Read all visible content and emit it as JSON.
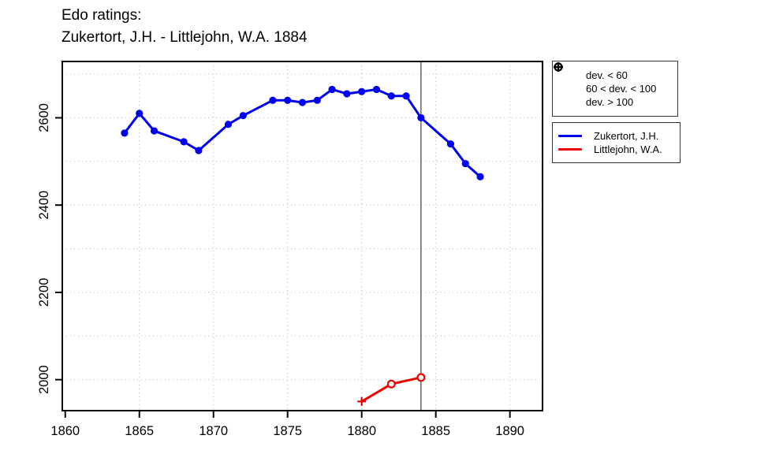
{
  "title": {
    "line1": "Edo ratings:",
    "line2": "Zukertort, J.H. - Littlejohn, W.A. 1884"
  },
  "colors": {
    "zukertort_blue": "#0000ee",
    "littlejohn_red": "#ee0000",
    "grid_gray": "#b4b4b4",
    "vline_gray": "#3f3f3f",
    "axis_black": "#000000"
  },
  "chart_data": {
    "type": "line",
    "title": "Edo ratings: Zukertort, J.H. - Littlejohn, W.A. 1884",
    "xlabel": "",
    "ylabel": "",
    "xlim": [
      1859.8,
      1892.2
    ],
    "ylim": [
      1929,
      2729
    ],
    "x_ticks": [
      1860,
      1865,
      1870,
      1875,
      1880,
      1885,
      1890
    ],
    "y_ticks": [
      2000,
      2200,
      2400,
      2600
    ],
    "x_grid": [
      1865,
      1870,
      1875,
      1880,
      1885,
      1890
    ],
    "y_grid": [
      2000,
      2100,
      2200,
      2300,
      2400,
      2500,
      2600,
      2700
    ],
    "grid_style": "dotted",
    "vline_year": 1884,
    "marker_legend": [
      {
        "symbol": "filled-circle",
        "label": "dev. < 60"
      },
      {
        "symbol": "open-circle",
        "label": "60 < dev. < 100"
      },
      {
        "symbol": "plus",
        "label": "dev. > 100"
      }
    ],
    "series": [
      {
        "name": "Zukertort, J.H.",
        "color": "#0000ee",
        "points": [
          {
            "x": 1864,
            "y": 2565,
            "marker": "filled-circle"
          },
          {
            "x": 1865,
            "y": 2610,
            "marker": "filled-circle"
          },
          {
            "x": 1866,
            "y": 2570,
            "marker": "filled-circle"
          },
          {
            "x": 1868,
            "y": 2545,
            "marker": "filled-circle"
          },
          {
            "x": 1869,
            "y": 2525,
            "marker": "filled-circle"
          },
          {
            "x": 1871,
            "y": 2585,
            "marker": "filled-circle"
          },
          {
            "x": 1872,
            "y": 2605,
            "marker": "filled-circle"
          },
          {
            "x": 1874,
            "y": 2640,
            "marker": "filled-circle"
          },
          {
            "x": 1875,
            "y": 2640,
            "marker": "filled-circle"
          },
          {
            "x": 1876,
            "y": 2635,
            "marker": "filled-circle"
          },
          {
            "x": 1877,
            "y": 2640,
            "marker": "filled-circle"
          },
          {
            "x": 1878,
            "y": 2665,
            "marker": "filled-circle"
          },
          {
            "x": 1879,
            "y": 2655,
            "marker": "filled-circle"
          },
          {
            "x": 1880,
            "y": 2660,
            "marker": "filled-circle"
          },
          {
            "x": 1881,
            "y": 2665,
            "marker": "filled-circle"
          },
          {
            "x": 1882,
            "y": 2650,
            "marker": "filled-circle"
          },
          {
            "x": 1883,
            "y": 2650,
            "marker": "filled-circle"
          },
          {
            "x": 1884,
            "y": 2600,
            "marker": "filled-circle"
          },
          {
            "x": 1886,
            "y": 2540,
            "marker": "filled-circle"
          },
          {
            "x": 1887,
            "y": 2495,
            "marker": "filled-circle"
          },
          {
            "x": 1888,
            "y": 2465,
            "marker": "filled-circle"
          }
        ]
      },
      {
        "name": "Littlejohn, W.A.",
        "color": "#ee0000",
        "points": [
          {
            "x": 1880,
            "y": 1950,
            "marker": "plus"
          },
          {
            "x": 1882,
            "y": 1990,
            "marker": "open-circle"
          },
          {
            "x": 1884,
            "y": 2005,
            "marker": "open-circle"
          }
        ]
      }
    ],
    "legend_position": "outside-right"
  }
}
